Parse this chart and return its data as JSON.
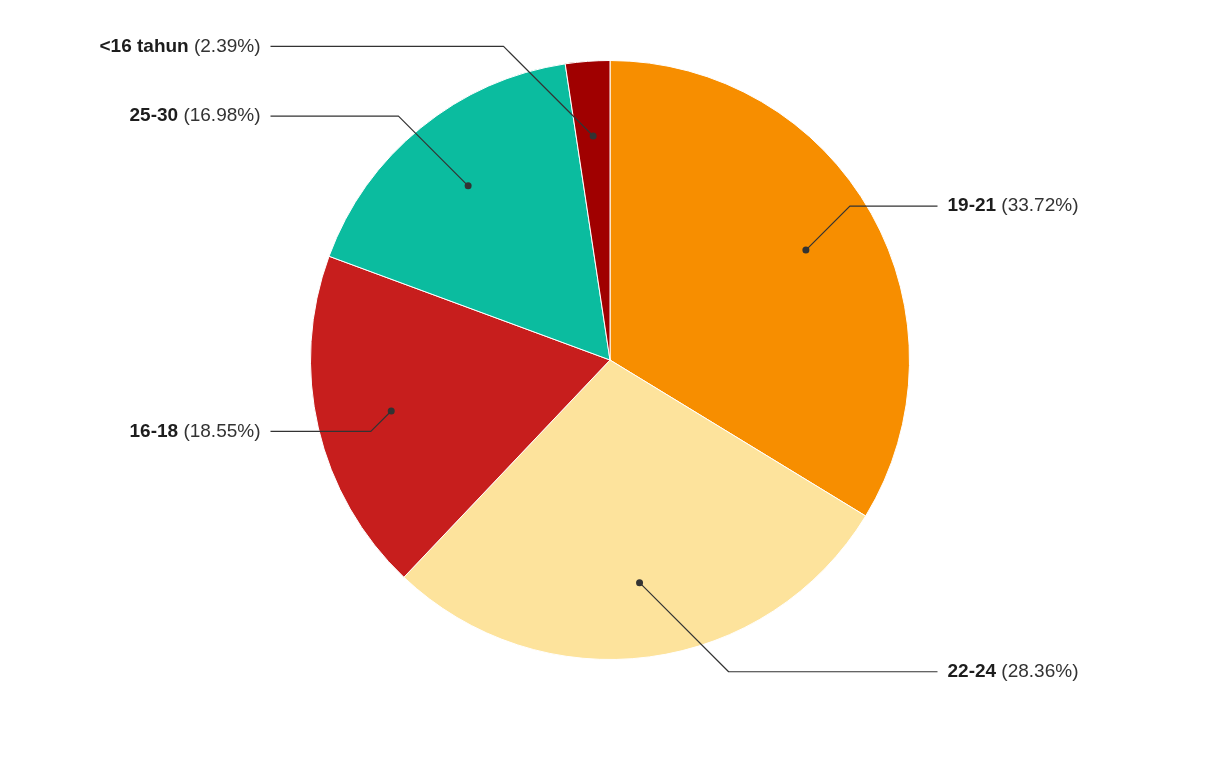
{
  "chart_data": {
    "type": "pie",
    "categories": [
      "19-21",
      "22-24",
      "16-18",
      "25-30",
      "<16 tahun"
    ],
    "values": [
      33.72,
      28.36,
      18.55,
      16.98,
      2.39
    ],
    "colors": [
      "#f78e00",
      "#fde39c",
      "#c71e1d",
      "#0bbc9f",
      "#a00000"
    ],
    "value_labels": [
      "(33.72%)",
      "(28.36%)",
      "(18.55%)",
      "(16.98%)",
      "(2.39%)"
    ],
    "legend": false
  }
}
